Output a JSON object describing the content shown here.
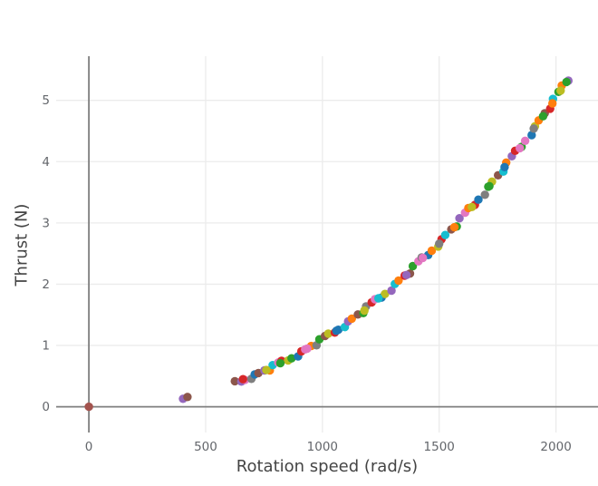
{
  "chart_data": {
    "type": "scatter",
    "title": "",
    "xlabel": "Rotation speed (rad/s)",
    "ylabel": "Thrust (N)",
    "xlim": [
      -140,
      2180
    ],
    "ylim": [
      -0.42,
      5.72
    ],
    "xticks": [
      0,
      500,
      1000,
      1500,
      2000
    ],
    "xtick_labels": [
      "0",
      "500",
      "1000",
      "1500",
      "2000"
    ],
    "yticks": [
      0,
      1,
      2,
      3,
      4,
      5
    ],
    "ytick_labels": [
      "0",
      "1",
      "2",
      "3",
      "4",
      "5"
    ],
    "grid": true,
    "zerolines": true,
    "legend_position": "none",
    "marker_radius": 4.7,
    "palette": [
      "#1f77b4",
      "#ff7f0e",
      "#2ca02c",
      "#d62728",
      "#9467bd",
      "#8c564b",
      "#e377c2",
      "#7f7f7f",
      "#bcbd22",
      "#17becf",
      "#a3534e"
    ],
    "style": {
      "background": "#ffffff",
      "grid_color": "#ebebeb",
      "grid_width": 1.3,
      "zeroline_color": "#7f7f7f",
      "zeroline_width": 1.8,
      "tick_color": "#63666b",
      "title_color": "#444444"
    },
    "points": [
      [
        625,
        0.418,
        5
      ],
      [
        653,
        0.411,
        4
      ],
      [
        668,
        0.436,
        6
      ],
      [
        696,
        0.456,
        7
      ],
      [
        710,
        0.528,
        0
      ],
      [
        726,
        0.55,
        5
      ],
      [
        752,
        0.594,
        4
      ],
      [
        775,
        0.594,
        1
      ],
      [
        787,
        0.68,
        9
      ],
      [
        811,
        0.722,
        6
      ],
      [
        825,
        0.75,
        3
      ],
      [
        853,
        0.754,
        8
      ],
      [
        868,
        0.79,
        2
      ],
      [
        896,
        0.821,
        0
      ],
      [
        910,
        0.904,
        3
      ],
      [
        926,
        0.937,
        6
      ],
      [
        952,
        0.992,
        1
      ],
      [
        975,
        1.004,
        7
      ],
      [
        987,
        1.101,
        2
      ],
      [
        1011,
        1.154,
        5
      ],
      [
        1025,
        1.194,
        8
      ],
      [
        1053,
        1.21,
        3
      ],
      [
        1068,
        1.257,
        0
      ],
      [
        1096,
        1.3,
        9
      ],
      [
        1110,
        1.394,
        4
      ],
      [
        1126,
        1.439,
        1
      ],
      [
        1152,
        1.506,
        5
      ],
      [
        1175,
        1.529,
        2
      ],
      [
        1187,
        1.638,
        7
      ],
      [
        1211,
        1.703,
        3
      ],
      [
        1225,
        1.755,
        6
      ],
      [
        1253,
        1.782,
        0
      ],
      [
        1268,
        1.841,
        8
      ],
      [
        1296,
        1.896,
        4
      ],
      [
        1310,
        2.003,
        9
      ],
      [
        1326,
        2.06,
        1
      ],
      [
        1352,
        2.139,
        3
      ],
      [
        1375,
        2.174,
        5
      ],
      [
        1387,
        2.295,
        2
      ],
      [
        1411,
        2.373,
        6
      ],
      [
        1425,
        2.436,
        7
      ],
      [
        1453,
        2.476,
        0
      ],
      [
        1468,
        2.547,
        1
      ],
      [
        1496,
        2.615,
        8
      ],
      [
        1510,
        2.733,
        3
      ],
      [
        1526,
        2.803,
        9
      ],
      [
        1552,
        2.895,
        5
      ],
      [
        1575,
        2.942,
        2
      ],
      [
        1587,
        3.076,
        4
      ],
      [
        1611,
        3.166,
        6
      ],
      [
        1625,
        3.243,
        1
      ],
      [
        1653,
        3.295,
        3
      ],
      [
        1668,
        3.379,
        0
      ],
      [
        1696,
        3.459,
        7
      ],
      [
        1710,
        3.591,
        2
      ],
      [
        1726,
        3.674,
        8
      ],
      [
        1752,
        3.778,
        5
      ],
      [
        1775,
        3.838,
        9
      ],
      [
        1787,
        3.985,
        1
      ],
      [
        1811,
        4.088,
        4
      ],
      [
        1825,
        4.177,
        3
      ],
      [
        1853,
        4.242,
        2
      ],
      [
        1868,
        4.339,
        6
      ],
      [
        1896,
        4.433,
        0
      ],
      [
        1910,
        4.577,
        8
      ],
      [
        1926,
        4.673,
        1
      ],
      [
        1952,
        4.79,
        5
      ],
      [
        1975,
        4.863,
        3
      ],
      [
        1987,
        5.023,
        9
      ],
      [
        2011,
        5.139,
        2
      ],
      [
        2025,
        5.242,
        1
      ],
      [
        2053,
        5.321,
        4
      ],
      [
        660,
        0.45,
        3
      ],
      [
        760,
        0.6,
        8
      ],
      [
        820,
        0.71,
        2
      ],
      [
        935,
        0.95,
        6
      ],
      [
        1060,
        1.24,
        0
      ],
      [
        1180,
        1.57,
        8
      ],
      [
        1240,
        1.77,
        9
      ],
      [
        1360,
        2.15,
        4
      ],
      [
        1430,
        2.43,
        6
      ],
      [
        1500,
        2.66,
        7
      ],
      [
        1565,
        2.93,
        1
      ],
      [
        1640,
        3.26,
        8
      ],
      [
        1715,
        3.6,
        2
      ],
      [
        1780,
        3.91,
        0
      ],
      [
        1845,
        4.22,
        6
      ],
      [
        1905,
        4.54,
        7
      ],
      [
        1945,
        4.74,
        2
      ],
      [
        1985,
        4.95,
        1
      ],
      [
        2020,
        5.16,
        8
      ],
      [
        2045,
        5.3,
        2
      ],
      [
        403,
        0.13,
        4
      ],
      [
        422,
        0.16,
        5
      ],
      [
        0,
        0.0,
        10
      ]
    ]
  }
}
